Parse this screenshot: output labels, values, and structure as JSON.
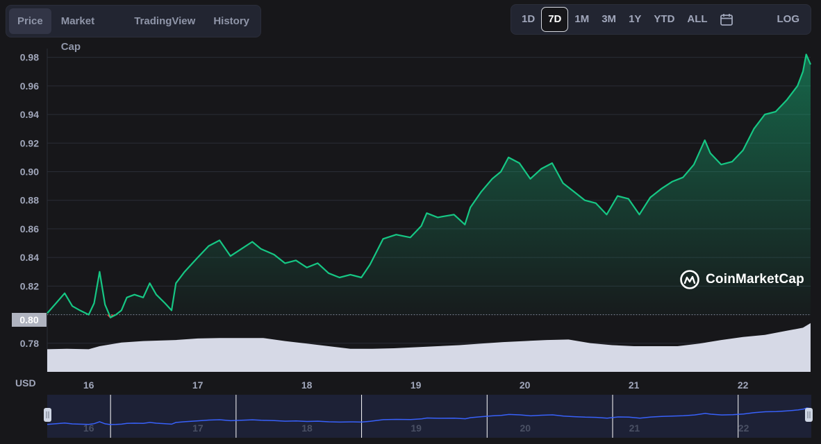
{
  "tabs": [
    "Price",
    "Market Cap",
    "TradingView",
    "History"
  ],
  "active_tab": "Price",
  "ranges": [
    "1D",
    "7D",
    "1M",
    "3M",
    "1Y",
    "YTD",
    "ALL"
  ],
  "active_range": "7D",
  "calendar_icon": "calendar-icon",
  "log_label": "LOG",
  "watermark": "CoinMarketCap",
  "colors": {
    "up": "#16c784",
    "down": "#ea3943",
    "volume": "#d6d9e6",
    "navigator_line": "#3861fb",
    "navigator_bg": "#1d2136"
  },
  "chart_data": {
    "type": "area",
    "currency_label": "USD",
    "y_ticks": [
      0.78,
      0.8,
      0.82,
      0.84,
      0.86,
      0.88,
      0.9,
      0.92,
      0.94,
      0.96,
      0.98
    ],
    "y_tick_labels": [
      "0.78",
      "0.80",
      "0.82",
      "0.84",
      "0.86",
      "0.88",
      "0.90",
      "0.92",
      "0.94",
      "0.96",
      "0.98"
    ],
    "ylim": [
      0.76,
      0.99
    ],
    "baseline_label": "0.80",
    "baseline_value": 0.8,
    "x_tick_labels": [
      "16",
      "17",
      "18",
      "19",
      "20",
      "21",
      "22"
    ],
    "x_tick_days": [
      16,
      17,
      18,
      19,
      20,
      21,
      22
    ],
    "xlim": [
      15.62,
      22.62
    ],
    "price_series": {
      "x": [
        15.62,
        15.7,
        15.78,
        15.85,
        15.92,
        16.0,
        16.05,
        16.1,
        16.15,
        16.2,
        16.25,
        16.3,
        16.35,
        16.42,
        16.5,
        16.56,
        16.62,
        16.7,
        16.76,
        16.8,
        16.88,
        17.0,
        17.1,
        17.2,
        17.3,
        17.4,
        17.5,
        17.58,
        17.7,
        17.8,
        17.9,
        18.0,
        18.1,
        18.2,
        18.3,
        18.4,
        18.5,
        18.58,
        18.7,
        18.82,
        18.95,
        19.05,
        19.1,
        19.2,
        19.35,
        19.45,
        19.5,
        19.6,
        19.7,
        19.78,
        19.85,
        19.95,
        20.05,
        20.15,
        20.25,
        20.35,
        20.45,
        20.55,
        20.65,
        20.75,
        20.85,
        20.95,
        21.05,
        21.15,
        21.25,
        21.35,
        21.45,
        21.55,
        21.65,
        21.7,
        21.8,
        21.9,
        22.0,
        22.1,
        22.2,
        22.3,
        22.4,
        22.5,
        22.55,
        22.58,
        22.62
      ],
      "y": [
        0.801,
        0.808,
        0.815,
        0.806,
        0.803,
        0.8,
        0.808,
        0.83,
        0.807,
        0.798,
        0.8,
        0.803,
        0.812,
        0.814,
        0.812,
        0.822,
        0.814,
        0.808,
        0.803,
        0.822,
        0.83,
        0.84,
        0.848,
        0.852,
        0.841,
        0.846,
        0.851,
        0.846,
        0.842,
        0.836,
        0.838,
        0.833,
        0.836,
        0.829,
        0.826,
        0.828,
        0.826,
        0.835,
        0.853,
        0.856,
        0.854,
        0.862,
        0.871,
        0.868,
        0.87,
        0.863,
        0.875,
        0.886,
        0.895,
        0.9,
        0.91,
        0.906,
        0.895,
        0.902,
        0.906,
        0.892,
        0.886,
        0.88,
        0.878,
        0.87,
        0.883,
        0.881,
        0.87,
        0.882,
        0.888,
        0.893,
        0.896,
        0.905,
        0.922,
        0.913,
        0.905,
        0.907,
        0.915,
        0.93,
        0.94,
        0.942,
        0.95,
        0.96,
        0.97,
        0.982,
        0.975
      ]
    },
    "volume_series": {
      "x": [
        15.62,
        15.8,
        16.0,
        16.1,
        16.3,
        16.5,
        16.8,
        17.0,
        17.2,
        17.4,
        17.6,
        17.8,
        18.0,
        18.2,
        18.4,
        18.6,
        18.8,
        19.0,
        19.2,
        19.4,
        19.6,
        19.8,
        20.0,
        20.2,
        20.4,
        20.6,
        20.8,
        21.0,
        21.2,
        21.4,
        21.6,
        21.8,
        22.0,
        22.2,
        22.4,
        22.55,
        22.62
      ],
      "relative": [
        0.44,
        0.45,
        0.44,
        0.5,
        0.57,
        0.6,
        0.62,
        0.65,
        0.66,
        0.66,
        0.66,
        0.6,
        0.55,
        0.5,
        0.45,
        0.45,
        0.46,
        0.48,
        0.5,
        0.52,
        0.55,
        0.58,
        0.6,
        0.62,
        0.63,
        0.56,
        0.52,
        0.5,
        0.5,
        0.5,
        0.55,
        0.62,
        0.68,
        0.72,
        0.8,
        0.86,
        0.95
      ]
    }
  }
}
